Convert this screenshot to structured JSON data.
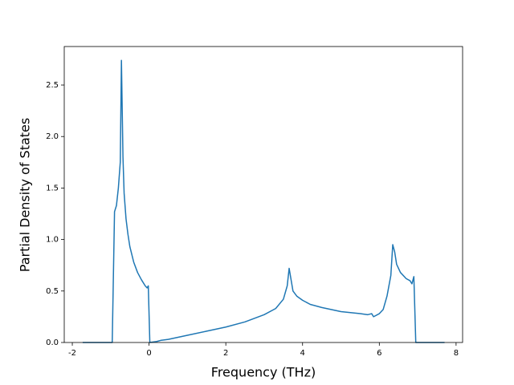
{
  "chart_data": {
    "type": "line",
    "x_label": "Frequency (THz)",
    "y_label": "Partial Density of States",
    "xlim": [
      -2.21,
      8.17
    ],
    "ylim": [
      0,
      2.874
    ],
    "xticks": [
      -2,
      0,
      2,
      4,
      6,
      8
    ],
    "yticks": [
      {
        "value": 0,
        "label": "0.0"
      },
      0.5,
      {
        "value": 1,
        "label": "1.0"
      },
      1.5,
      {
        "value": 2,
        "label": "2.0"
      },
      2.5
    ],
    "series": [
      {
        "color": "#1f77b4",
        "x": [
          -1.73,
          -0.96,
          -0.9,
          -0.85,
          -0.8,
          -0.75,
          -0.72,
          -0.68,
          -0.65,
          -0.6,
          -0.55,
          -0.5,
          -0.4,
          -0.3,
          -0.2,
          -0.1,
          -0.05,
          -0.02,
          0.02,
          0.2,
          0.3,
          0.5,
          1,
          1.5,
          2,
          2.5,
          3,
          3.3,
          3.5,
          3.6,
          3.65,
          3.75,
          3.85,
          4,
          4.2,
          4.5,
          5,
          5.5,
          5.7,
          5.8,
          5.85,
          6,
          6.1,
          6.2,
          6.3,
          6.35,
          6.4,
          6.45,
          6.55,
          6.7,
          6.8,
          6.85,
          6.9,
          6.95,
          7.7
        ],
        "values": [
          0,
          0,
          1.27,
          1.33,
          1.5,
          1.75,
          2.74,
          1.8,
          1.45,
          1.2,
          1.05,
          0.93,
          0.78,
          0.68,
          0.61,
          0.55,
          0.53,
          0.55,
          0,
          0.01,
          0.02,
          0.03,
          0.07,
          0.11,
          0.15,
          0.2,
          0.27,
          0.33,
          0.42,
          0.55,
          0.72,
          0.5,
          0.45,
          0.41,
          0.37,
          0.34,
          0.3,
          0.28,
          0.27,
          0.28,
          0.25,
          0.28,
          0.32,
          0.45,
          0.65,
          0.95,
          0.88,
          0.76,
          0.68,
          0.62,
          0.6,
          0.57,
          0.64,
          0,
          0
        ]
      }
    ]
  }
}
